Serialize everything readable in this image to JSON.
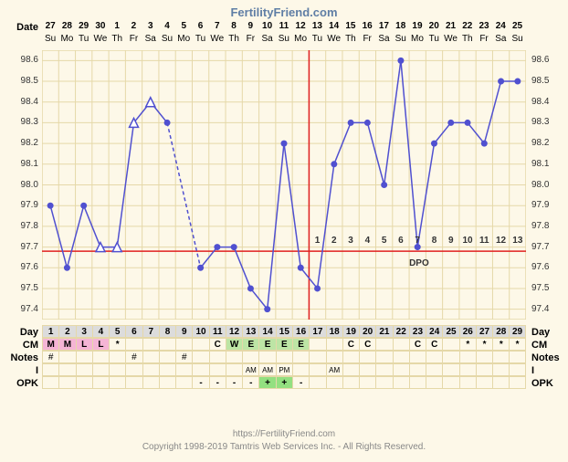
{
  "title": "FertilityFriend.com",
  "footer_url": "https://FertilityFriend.com",
  "footer_copyright": "Copyright 1998-2019 Tamtris Web Services Inc. - All Rights Reserved.",
  "labels": {
    "date": "Date",
    "day": "Day",
    "cm": "CM",
    "notes": "Notes",
    "i": "I",
    "opk": "OPK",
    "dpo": "DPO"
  },
  "dates": [
    {
      "num": "27",
      "dow": "Su"
    },
    {
      "num": "28",
      "dow": "Mo"
    },
    {
      "num": "29",
      "dow": "Tu"
    },
    {
      "num": "30",
      "dow": "We"
    },
    {
      "num": "1",
      "dow": "Th"
    },
    {
      "num": "2",
      "dow": "Fr"
    },
    {
      "num": "3",
      "dow": "Sa"
    },
    {
      "num": "4",
      "dow": "Su"
    },
    {
      "num": "5",
      "dow": "Mo"
    },
    {
      "num": "6",
      "dow": "Tu"
    },
    {
      "num": "7",
      "dow": "We"
    },
    {
      "num": "8",
      "dow": "Th"
    },
    {
      "num": "9",
      "dow": "Fr"
    },
    {
      "num": "10",
      "dow": "Sa"
    },
    {
      "num": "11",
      "dow": "Su"
    },
    {
      "num": "12",
      "dow": "Mo"
    },
    {
      "num": "13",
      "dow": "Tu"
    },
    {
      "num": "14",
      "dow": "We"
    },
    {
      "num": "15",
      "dow": "Th"
    },
    {
      "num": "16",
      "dow": "Fr"
    },
    {
      "num": "17",
      "dow": "Sa"
    },
    {
      "num": "18",
      "dow": "Su"
    },
    {
      "num": "19",
      "dow": "Mo"
    },
    {
      "num": "20",
      "dow": "Tu"
    },
    {
      "num": "21",
      "dow": "We"
    },
    {
      "num": "22",
      "dow": "Th"
    },
    {
      "num": "23",
      "dow": "Fr"
    },
    {
      "num": "24",
      "dow": "Sa"
    },
    {
      "num": "25",
      "dow": "Su"
    }
  ],
  "days": [
    "1",
    "2",
    "3",
    "4",
    "5",
    "6",
    "7",
    "8",
    "9",
    "10",
    "11",
    "12",
    "13",
    "14",
    "15",
    "16",
    "17",
    "18",
    "19",
    "20",
    "21",
    "22",
    "23",
    "24",
    "25",
    "26",
    "27",
    "28",
    "29"
  ],
  "cm_row": {
    "values": [
      "M",
      "M",
      "L",
      "L",
      "*",
      "",
      "",
      "",
      "",
      "",
      "C",
      "W",
      "E",
      "E",
      "E",
      "E",
      "",
      "",
      "C",
      "C",
      "",
      "",
      "C",
      "C",
      "",
      "*",
      "*",
      "*",
      "*"
    ],
    "colors": [
      "#f5b5d5",
      "#f5b5d5",
      "#f5b5d5",
      "#f5b5d5",
      "",
      "",
      "",
      "",
      "",
      "",
      "",
      "#bde5a5",
      "#bde5a5",
      "#bde5a5",
      "#bde5a5",
      "#bde5a5",
      "",
      "",
      "",
      "",
      "",
      "",
      "",
      "",
      "",
      "",
      "",
      "",
      ""
    ]
  },
  "notes_row": [
    "#",
    "",
    "",
    "",
    "",
    "#",
    "",
    "",
    "#",
    "",
    "",
    "",
    "",
    "",
    "",
    "",
    "",
    "",
    "",
    "",
    "",
    "",
    "",
    "",
    "",
    "",
    "",
    "",
    ""
  ],
  "i_row": [
    "",
    "",
    "",
    "",
    "",
    "",
    "",
    "",
    "",
    "",
    "",
    "",
    "AM",
    "AM",
    "PM",
    "",
    "",
    "AM",
    "",
    "",
    "",
    "",
    "",
    "",
    "",
    "",
    "",
    "",
    ""
  ],
  "opk_row": {
    "values": [
      "",
      "",
      "",
      "",
      "",
      "",
      "",
      "",
      "",
      "-",
      "-",
      "-",
      "-",
      "+",
      "+",
      "-",
      "",
      "",
      "",
      "",
      "",
      "",
      "",
      "",
      "",
      "",
      "",
      "",
      ""
    ],
    "colors": [
      "",
      "",
      "",
      "",
      "",
      "",
      "",
      "",
      "",
      "",
      "",
      "",
      "",
      "#93e080",
      "#93e080",
      "",
      "",
      "",
      "",
      "",
      "",
      "",
      "",
      "",
      "",
      "",
      "",
      "",
      ""
    ]
  },
  "chart": {
    "type": "line",
    "background_color": "#fdf8e8",
    "grid_color": "#e5d8a8",
    "line_color": "#5050d0",
    "marker_color": "#5050d0",
    "open_marker_fill": "#ffffff",
    "coverline_color": "#e02020",
    "ovulation_line_color": "#e02020",
    "ylim": [
      97.35,
      98.65
    ],
    "ytick_step": 0.1,
    "yticks": [
      97.4,
      97.5,
      97.6,
      97.7,
      97.8,
      97.9,
      98.0,
      98.1,
      98.2,
      98.3,
      98.4,
      98.5,
      98.6
    ],
    "ytick_labels": [
      "97.4",
      "97.5",
      "97.6",
      "97.7",
      "97.8",
      "97.9",
      "98.0",
      "98.1",
      "98.2",
      "98.3",
      "98.4",
      "98.5",
      "98.6"
    ],
    "coverline": 97.68,
    "ovulation_day_index": 15,
    "temps": [
      97.9,
      97.6,
      97.9,
      97.7,
      97.7,
      98.3,
      98.4,
      98.3,
      null,
      97.6,
      97.7,
      97.7,
      97.5,
      97.4,
      98.2,
      97.6,
      97.5,
      98.1,
      98.3,
      98.3,
      98.0,
      98.6,
      97.7,
      98.2,
      98.3,
      98.3,
      98.2,
      98.5,
      98.5
    ],
    "temp_styles": [
      "solid",
      "solid",
      "solid",
      "open",
      "open",
      "open",
      "open",
      "solid",
      "none",
      "solid",
      "solid",
      "solid",
      "solid",
      "solid",
      "solid",
      "solid",
      "solid",
      "solid",
      "solid",
      "solid",
      "solid",
      "solid",
      "solid",
      "solid",
      "solid",
      "solid",
      "solid",
      "solid",
      "solid"
    ],
    "dashed_segments": [
      [
        7,
        9
      ]
    ],
    "dpo_start_index": 16,
    "dpo_labels": [
      "1",
      "2",
      "3",
      "4",
      "5",
      "6",
      "7",
      "8",
      "9",
      "10",
      "11",
      "12",
      "13"
    ]
  },
  "colors": {
    "title_color": "#5f7ea5",
    "text_color": "#333333",
    "day_row_bg": "#dcdcdc",
    "footer_text_color": "#888888"
  }
}
